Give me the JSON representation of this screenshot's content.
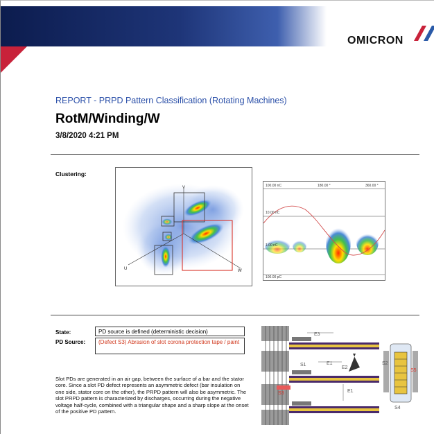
{
  "header": {
    "logo_text": "OMICRON",
    "colors": {
      "band": "#1e3578",
      "accent": "#c8223a",
      "logo_red": "#c8223a",
      "logo_blue": "#2a5aa8"
    }
  },
  "report": {
    "heading": "REPORT - PRPD Pattern Classification (Rotating Machines)",
    "title": "RotM/Winding/W",
    "date": "3/8/2020 4:21 PM"
  },
  "clustering": {
    "label": "Clustering:",
    "markers": {
      "v": "V",
      "u": "U",
      "w": "W"
    }
  },
  "prpd": {
    "top_left": "100.00 nC",
    "top_mid": "180.00 °",
    "top_right": "360.00 °",
    "level1": "10.00 nC",
    "level2": "1.00 nC",
    "bottom": "100.00 pC"
  },
  "classification": {
    "state_label": "State:",
    "state_value": "PD source is defined (deterministic decision)",
    "source_label": "PD Source:",
    "source_value": "(Defect S3) Abrasion of  slot corona protection tape / paint",
    "description": "Slot PDs are generated in an air gap, between the surface of a bar and the stator core. Since a slot PD defect represents an asymmetric defect (bar insulation on one side, stator core on the other), the PRPD pattern will also be asymmetric. The slot PRPD pattern is characterized by discharges, occurring during the negative voltage half-cycle, combined with a triangular shape and a sharp slope at the onset of the positive PD pattern."
  },
  "diagram_labels": {
    "e3": "E3",
    "e2": "E2",
    "e1a": "E1",
    "e1b": "E1",
    "s1": "S1",
    "s2": "S2",
    "s3": "S3",
    "s4": "S4",
    "s5": "S5"
  }
}
